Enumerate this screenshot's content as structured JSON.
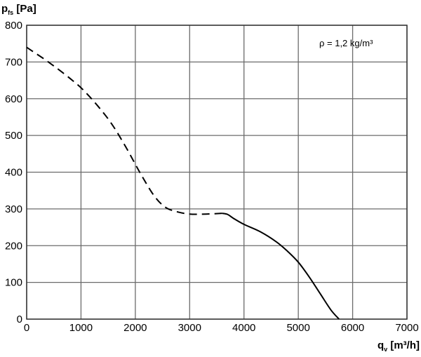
{
  "chart_data": {
    "type": "line",
    "ylabel": {
      "main": "p",
      "sub": "fs",
      "unit": " [Pa]"
    },
    "xlabel": {
      "main": "q",
      "sub": "v",
      "unit": " [m³/h]"
    },
    "xlim": [
      0,
      7000
    ],
    "ylim": [
      0,
      800
    ],
    "x_ticks": [
      0,
      1000,
      2000,
      3000,
      4000,
      5000,
      6000,
      7000
    ],
    "y_ticks": [
      0,
      100,
      200,
      300,
      400,
      500,
      600,
      700,
      800
    ],
    "grid": true,
    "annotation": "ρ = 1,2 kg/m³",
    "series": [
      {
        "style": "dashed",
        "x": [
          0,
          100,
          400,
          800,
          1100,
          1500,
          1800,
          2100,
          2350,
          2550,
          2750,
          3000,
          3300,
          3600
        ],
        "y": [
          740,
          730,
          700,
          655,
          615,
          545,
          475,
          395,
          335,
          305,
          293,
          286,
          286,
          288
        ]
      },
      {
        "style": "solid",
        "x": [
          3600,
          3700,
          3800,
          4000,
          4300,
          4600,
          4800,
          5000,
          5200,
          5400,
          5600,
          5750
        ],
        "y": [
          288,
          285,
          275,
          258,
          238,
          210,
          185,
          155,
          115,
          70,
          25,
          0
        ]
      }
    ]
  }
}
